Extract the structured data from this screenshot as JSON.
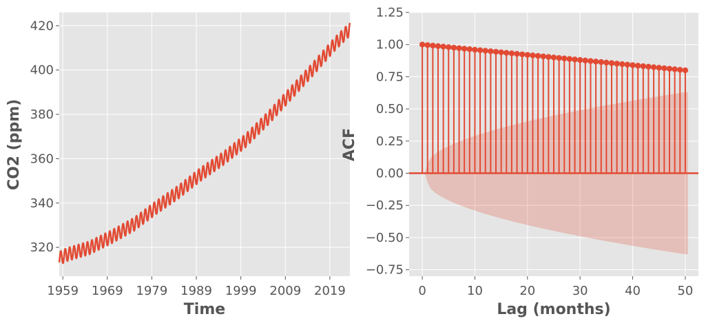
{
  "colors": {
    "series": "#E24A33",
    "plot_background": "#E5E5E5",
    "grid": "#FFFFFF",
    "text": "#555555",
    "confidence_band": "#E24A33"
  },
  "chart_data": [
    {
      "type": "line",
      "xlabel": "Time",
      "ylabel": "CO2 (ppm)",
      "xlim": [
        1958.2,
        2023.5
      ],
      "ylim": [
        307,
        426
      ],
      "x_ticks": [
        "1959",
        "1969",
        "1979",
        "1989",
        "1999",
        "2009",
        "2019"
      ],
      "y_ticks": [
        "320",
        "340",
        "360",
        "380",
        "400",
        "420"
      ],
      "grid": true,
      "series": [
        {
          "description_of_samples": "annual midpoint values; seasonal cycle amplitude ~3 ppm (peak-to-peak ~6 ppm)",
          "years": [
            1958.2,
            1960,
            1965,
            1970,
            1975,
            1980,
            1985,
            1990,
            1995,
            2000,
            2005,
            2010,
            2015,
            2020,
            2023.5
          ],
          "values": [
            315.0,
            316.8,
            319.8,
            324.8,
            330.4,
            338.0,
            345.0,
            353.0,
            360.0,
            368.0,
            378.0,
            389.0,
            400.0,
            411.5,
            418.5
          ],
          "seasonal_amplitude": 3.0
        }
      ]
    },
    {
      "type": "stem",
      "xlabel": "Lag (months)",
      "ylabel": "ACF",
      "xlim": [
        -2.5,
        52.5
      ],
      "ylim": [
        -0.8,
        1.25
      ],
      "x_ticks": [
        "0",
        "10",
        "20",
        "30",
        "40",
        "50"
      ],
      "y_ticks": [
        "−0.75",
        "−0.50",
        "−0.25",
        "0.00",
        "0.25",
        "0.50",
        "0.75",
        "1.00",
        "1.25"
      ],
      "grid": true,
      "lags": [
        0,
        1,
        2,
        3,
        4,
        5,
        6,
        7,
        8,
        9,
        10,
        11,
        12,
        13,
        14,
        15,
        16,
        17,
        18,
        19,
        20,
        21,
        22,
        23,
        24,
        25,
        26,
        27,
        28,
        29,
        30,
        31,
        32,
        33,
        34,
        35,
        36,
        37,
        38,
        39,
        40,
        41,
        42,
        43,
        44,
        45,
        46,
        47,
        48,
        49,
        50
      ],
      "acf": [
        1.0,
        0.996,
        0.992,
        0.988,
        0.984,
        0.98,
        0.976,
        0.972,
        0.968,
        0.964,
        0.96,
        0.956,
        0.952,
        0.948,
        0.944,
        0.94,
        0.936,
        0.932,
        0.928,
        0.924,
        0.92,
        0.916,
        0.912,
        0.908,
        0.904,
        0.9,
        0.896,
        0.892,
        0.888,
        0.884,
        0.88,
        0.876,
        0.872,
        0.868,
        0.864,
        0.86,
        0.856,
        0.852,
        0.848,
        0.844,
        0.84,
        0.836,
        0.832,
        0.828,
        0.824,
        0.82,
        0.816,
        0.812,
        0.808,
        0.804,
        0.8
      ],
      "confidence_bound_lag1": 0.07,
      "confidence_bound_lag50": 0.63
    }
  ]
}
